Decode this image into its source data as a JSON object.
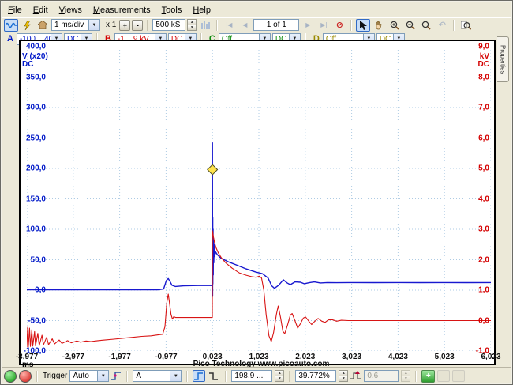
{
  "menu": {
    "items": [
      "File",
      "Edit",
      "Views",
      "Measurements",
      "Tools",
      "Help"
    ]
  },
  "toolbar": {
    "timebase": "1 ms/div",
    "zoom_factor": "x 1",
    "zoom_plus": "+",
    "zoom_minus": "-",
    "samples": "500 kS",
    "buffer_position": "1 of 1"
  },
  "channels": [
    {
      "id": "A",
      "range": "-100 .. 400...",
      "coupling": "DC",
      "color": "#0018c8"
    },
    {
      "id": "B",
      "range": "-1 .. 9 kV",
      "coupling": "DC",
      "color": "#d40000"
    },
    {
      "id": "C",
      "range": "Off",
      "coupling": "DC",
      "color": "#0c8a0c"
    },
    {
      "id": "D",
      "range": "Off",
      "coupling": "DC",
      "color": "#9a8a00"
    }
  ],
  "plot": {
    "left_axis": {
      "labels": [
        "400,0",
        "350,0",
        "300,0",
        "250,0",
        "200,0",
        "150,0",
        "100,0",
        "50,0",
        "0,0",
        "-50,0",
        "-100,0"
      ],
      "unit_line1": "V (x20)",
      "unit_line2": "DC",
      "color": "#0018c8"
    },
    "right_axis": {
      "labels": [
        "9,0",
        "8,0",
        "7,0",
        "6,0",
        "5,0",
        "4,0",
        "3,0",
        "2,0",
        "1,0",
        "0,0",
        "-1,0"
      ],
      "unit_line1": "kV",
      "unit_line2": "DC",
      "color": "#d40000"
    },
    "x_labels": [
      "-3,977",
      "-2,977",
      "-1,977",
      "-0,977",
      "0,023",
      "1,023",
      "2,023",
      "3,023",
      "4,023",
      "5,023",
      "6,023"
    ],
    "x_unit": "ms",
    "watermark": "Pico Technology   www.picoauto.com"
  },
  "properties_tab": {
    "label": "Properties"
  },
  "statusbar": {
    "trigger_label": "Trigger",
    "mode": "Auto",
    "source": "A",
    "threshold": "198.9 ...",
    "pre_trigger": "39.772%",
    "delay": "0.6",
    "add_label": "+"
  },
  "chart_data": {
    "type": "line",
    "xlabel": "ms",
    "x_range": [
      -3.977,
      6.023
    ],
    "left_axis_range": [
      -100,
      400
    ],
    "right_axis_range": [
      -1,
      9
    ],
    "grid": "dotted 1 ms x 50 V divisions",
    "watermark": "Pico Technology www.picoauto.com",
    "trigger_marker": {
      "t": 0.023,
      "value_left_axis": 198,
      "shape": "yellow-diamond"
    },
    "series": [
      {
        "name": "Channel A (V x20, left axis)",
        "color": "#1818cf",
        "axis": "left",
        "points": [
          [
            -3.977,
            0.5
          ],
          [
            -3.0,
            0.5
          ],
          [
            -2.0,
            0.5
          ],
          [
            -1.5,
            0.5
          ],
          [
            -1.15,
            0.5
          ],
          [
            -1.03,
            2
          ],
          [
            -0.97,
            16
          ],
          [
            -0.93,
            19
          ],
          [
            -0.89,
            14
          ],
          [
            -0.85,
            8
          ],
          [
            -0.78,
            6
          ],
          [
            -0.6,
            7
          ],
          [
            -0.3,
            7.5
          ],
          [
            -0.05,
            7.5
          ],
          [
            0.018,
            7.5
          ],
          [
            0.021,
            120
          ],
          [
            0.023,
            242
          ],
          [
            0.026,
            -10
          ],
          [
            0.029,
            119
          ],
          [
            0.032,
            10
          ],
          [
            0.036,
            100
          ],
          [
            0.04,
            25
          ],
          [
            0.045,
            85
          ],
          [
            0.052,
            45
          ],
          [
            0.06,
            75
          ],
          [
            0.07,
            55
          ],
          [
            0.09,
            63
          ],
          [
            0.13,
            58
          ],
          [
            0.2,
            53
          ],
          [
            0.35,
            47
          ],
          [
            0.55,
            41
          ],
          [
            0.75,
            35
          ],
          [
            0.95,
            30
          ],
          [
            1.1,
            27
          ],
          [
            1.22,
            20
          ],
          [
            1.3,
            7
          ],
          [
            1.36,
            3
          ],
          [
            1.45,
            8
          ],
          [
            1.55,
            17
          ],
          [
            1.63,
            12
          ],
          [
            1.7,
            9
          ],
          [
            1.8,
            13.5
          ],
          [
            1.92,
            13
          ],
          [
            2.0,
            10.5
          ],
          [
            2.12,
            12.5
          ],
          [
            2.22,
            13.5
          ],
          [
            2.35,
            11.8
          ],
          [
            2.5,
            12.5
          ],
          [
            2.7,
            12.2
          ],
          [
            3.0,
            12.5
          ],
          [
            3.5,
            12.4
          ],
          [
            4.0,
            12.5
          ],
          [
            4.5,
            12.4
          ],
          [
            5.0,
            12.5
          ],
          [
            5.5,
            12.4
          ],
          [
            6.023,
            12.5
          ]
        ]
      },
      {
        "name": "Channel B (kV, right axis)",
        "color": "#d81414",
        "axis": "right",
        "points": [
          [
            -3.977,
            -0.88
          ],
          [
            -3.96,
            -0.22
          ],
          [
            -3.945,
            -0.86
          ],
          [
            -3.92,
            -0.25
          ],
          [
            -3.9,
            -0.85
          ],
          [
            -3.87,
            -0.3
          ],
          [
            -3.85,
            -0.84
          ],
          [
            -3.81,
            -0.36
          ],
          [
            -3.79,
            -0.83
          ],
          [
            -3.74,
            -0.42
          ],
          [
            -3.71,
            -0.82
          ],
          [
            -3.65,
            -0.48
          ],
          [
            -3.62,
            -0.8
          ],
          [
            -3.55,
            -0.55
          ],
          [
            -3.51,
            -0.79
          ],
          [
            -3.43,
            -0.6
          ],
          [
            -3.38,
            -0.77
          ],
          [
            -3.28,
            -0.64
          ],
          [
            -3.22,
            -0.75
          ],
          [
            -3.1,
            -0.66
          ],
          [
            -3.02,
            -0.73
          ],
          [
            -2.9,
            -0.67
          ],
          [
            -2.82,
            -0.71
          ],
          [
            -2.7,
            -0.67
          ],
          [
            -2.6,
            -0.69
          ],
          [
            -2.45,
            -0.66
          ],
          [
            -2.3,
            -0.64
          ],
          [
            -2.1,
            -0.61
          ],
          [
            -1.9,
            -0.58
          ],
          [
            -1.7,
            -0.55
          ],
          [
            -1.5,
            -0.52
          ],
          [
            -1.3,
            -0.5
          ],
          [
            -1.15,
            -0.47
          ],
          [
            -1.05,
            -0.45
          ],
          [
            -1.0,
            -0.2
          ],
          [
            -0.96,
            0.6
          ],
          [
            -0.93,
            0.87
          ],
          [
            -0.9,
            0.55
          ],
          [
            -0.87,
            0.2
          ],
          [
            -0.84,
            0.05
          ],
          [
            -0.81,
            0.13
          ],
          [
            -0.77,
            0.1
          ],
          [
            -0.6,
            0.1
          ],
          [
            -0.4,
            0.1
          ],
          [
            -0.2,
            0.1
          ],
          [
            0.0,
            0.1
          ],
          [
            0.019,
            0.1
          ],
          [
            0.023,
            2.95
          ],
          [
            0.04,
            2.78
          ],
          [
            0.07,
            2.55
          ],
          [
            0.1,
            2.4
          ],
          [
            0.15,
            2.22
          ],
          [
            0.22,
            2.05
          ],
          [
            0.32,
            1.88
          ],
          [
            0.45,
            1.72
          ],
          [
            0.6,
            1.57
          ],
          [
            0.75,
            1.49
          ],
          [
            0.88,
            1.44
          ],
          [
            0.97,
            1.42
          ],
          [
            1.03,
            1.46
          ],
          [
            1.08,
            1.4
          ],
          [
            1.13,
            1.0
          ],
          [
            1.18,
            0.2
          ],
          [
            1.24,
            -0.5
          ],
          [
            1.29,
            -0.69
          ],
          [
            1.34,
            -0.4
          ],
          [
            1.4,
            0.2
          ],
          [
            1.44,
            0.48
          ],
          [
            1.49,
            0.1
          ],
          [
            1.54,
            -0.35
          ],
          [
            1.58,
            -0.43
          ],
          [
            1.64,
            -0.15
          ],
          [
            1.7,
            0.18
          ],
          [
            1.74,
            0.23
          ],
          [
            1.8,
            0.0
          ],
          [
            1.86,
            -0.25
          ],
          [
            1.92,
            -0.1
          ],
          [
            1.98,
            0.08
          ],
          [
            2.03,
            0.12
          ],
          [
            2.1,
            -0.02
          ],
          [
            2.16,
            -0.13
          ],
          [
            2.23,
            -0.02
          ],
          [
            2.3,
            0.07
          ],
          [
            2.38,
            -0.02
          ],
          [
            2.45,
            -0.06
          ],
          [
            2.52,
            0.02
          ],
          [
            2.6,
            0.03
          ],
          [
            2.7,
            -0.02
          ],
          [
            2.8,
            0.01
          ],
          [
            2.95,
            0.0
          ],
          [
            3.5,
            0.0
          ],
          [
            4.0,
            0.0
          ],
          [
            5.0,
            0.0
          ],
          [
            6.023,
            0.0
          ]
        ]
      }
    ]
  }
}
